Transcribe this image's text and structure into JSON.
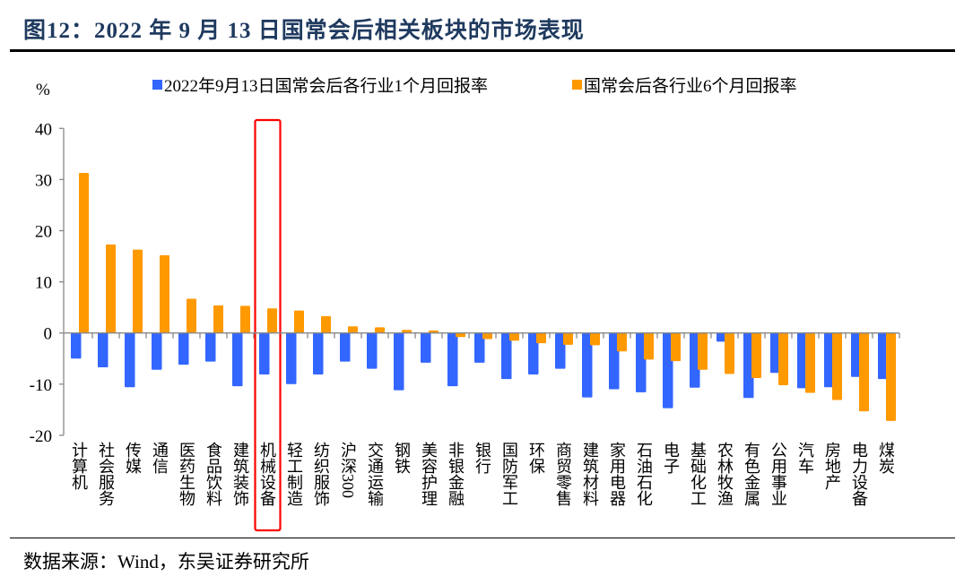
{
  "title": "图12：2022 年 9 月 13 日国常会后相关板块的市场表现",
  "source": "数据来源：Wind，东吴证券研究所",
  "chart_data": {
    "type": "bar",
    "title": "",
    "ylabel": "%",
    "ylim": [
      -20,
      40
    ],
    "yticks": [
      -20,
      -10,
      0,
      10,
      20,
      30,
      40
    ],
    "legend_position": "top",
    "highlight_category": "机械设备",
    "highlight_color": "#ff0000",
    "categories": [
      "计算机",
      "社会服务",
      "传媒",
      "通信",
      "医药生物",
      "食品饮料",
      "建筑装饰",
      "机械设备",
      "轻工制造",
      "纺织服饰",
      "沪深300",
      "交通运输",
      "钢铁",
      "美容护理",
      "非银金融",
      "银行",
      "国防军工",
      "环保",
      "商贸零售",
      "建筑材料",
      "家用电器",
      "石油石化",
      "电子",
      "基础化工",
      "农林牧渔",
      "有色金属",
      "公用事业",
      "汽车",
      "房地产",
      "电力设备",
      "煤炭"
    ],
    "series": [
      {
        "name": "2022年9月13日国常会后各行业1个月回报率",
        "color": "#3366ff",
        "values": [
          -5.0,
          -6.7,
          -10.6,
          -7.2,
          -6.2,
          -5.6,
          -10.4,
          -8.1,
          -10.0,
          -8.1,
          -5.6,
          -7.0,
          -11.2,
          -5.8,
          -10.4,
          -5.8,
          -9.0,
          -8.1,
          -7.0,
          -12.6,
          -11.0,
          -11.6,
          -14.7,
          -10.7,
          -1.7,
          -12.7,
          -7.8,
          -10.8,
          -10.6,
          -8.6,
          -9.0
        ]
      },
      {
        "name": "国常会后各行业6个月回报率",
        "color": "#ff9900",
        "values": [
          31.3,
          17.3,
          16.3,
          15.2,
          6.7,
          5.4,
          5.3,
          4.8,
          4.4,
          3.3,
          1.3,
          1.1,
          0.6,
          0.5,
          -0.8,
          -1.2,
          -1.5,
          -2.0,
          -2.3,
          -2.4,
          -3.6,
          -5.2,
          -5.5,
          -7.2,
          -8.0,
          -8.8,
          -10.2,
          -11.7,
          -13.1,
          -15.3,
          -17.2
        ]
      }
    ]
  }
}
